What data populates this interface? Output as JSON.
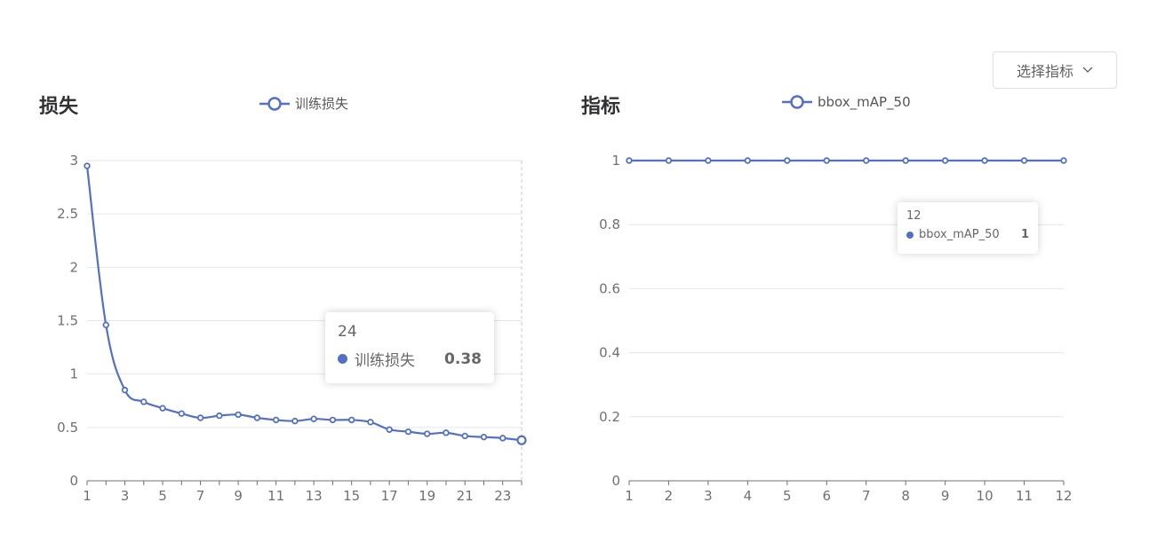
{
  "loss_panel": {
    "title": "损失"
  },
  "metric_panel": {
    "title": "指标"
  },
  "select_metric": {
    "label": "选择指标"
  },
  "colors": {
    "series": "#5470c6",
    "grid": "#e0e6f1",
    "axis": "#6e7079",
    "text": "#303133"
  },
  "chart_data": [
    {
      "type": "line",
      "title": "损失",
      "x": [
        1,
        2,
        3,
        4,
        5,
        6,
        7,
        8,
        9,
        10,
        11,
        12,
        13,
        14,
        15,
        16,
        17,
        18,
        19,
        20,
        21,
        22,
        23,
        24
      ],
      "series": [
        {
          "name": "训练损失",
          "values": [
            2.95,
            1.46,
            0.85,
            0.74,
            0.68,
            0.63,
            0.59,
            0.61,
            0.62,
            0.59,
            0.57,
            0.56,
            0.58,
            0.57,
            0.57,
            0.55,
            0.48,
            0.46,
            0.44,
            0.45,
            0.42,
            0.41,
            0.4,
            0.38
          ]
        }
      ],
      "x_ticks": [
        1,
        3,
        5,
        7,
        9,
        11,
        13,
        15,
        17,
        19,
        21,
        23
      ],
      "y_ticks": [
        0,
        0.5,
        1,
        1.5,
        2,
        2.5,
        3
      ],
      "ylim": [
        0,
        3
      ],
      "smooth": true,
      "grid": true,
      "legend": "top-center",
      "tooltip": {
        "x": "24",
        "series": "训练损失",
        "value": "0.38"
      }
    },
    {
      "type": "line",
      "title": "指标",
      "x": [
        1,
        2,
        3,
        4,
        5,
        6,
        7,
        8,
        9,
        10,
        11,
        12
      ],
      "series": [
        {
          "name": "bbox_mAP_50",
          "values": [
            1,
            1,
            1,
            1,
            1,
            1,
            1,
            1,
            1,
            1,
            1,
            1
          ]
        }
      ],
      "x_ticks": [
        1,
        2,
        3,
        4,
        5,
        6,
        7,
        8,
        9,
        10,
        11,
        12
      ],
      "y_ticks": [
        0,
        0.2,
        0.4,
        0.6,
        0.8,
        1
      ],
      "ylim": [
        0,
        1
      ],
      "grid": true,
      "legend": "top-center",
      "tooltip": {
        "x": "12",
        "series": "bbox_mAP_50",
        "value": "1"
      }
    }
  ]
}
